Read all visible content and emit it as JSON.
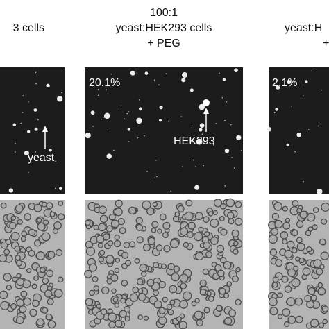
{
  "columns": [
    {
      "header": [
        "3 cells"
      ],
      "annotation": "yeast"
    },
    {
      "header": [
        "100:1",
        "yeast:HEK293 cells",
        "+ PEG"
      ],
      "percent": "20.1%",
      "annotation": "HEK293"
    },
    {
      "header": [
        "yeast:H",
        "+"
      ],
      "percent": "2.1%"
    }
  ]
}
